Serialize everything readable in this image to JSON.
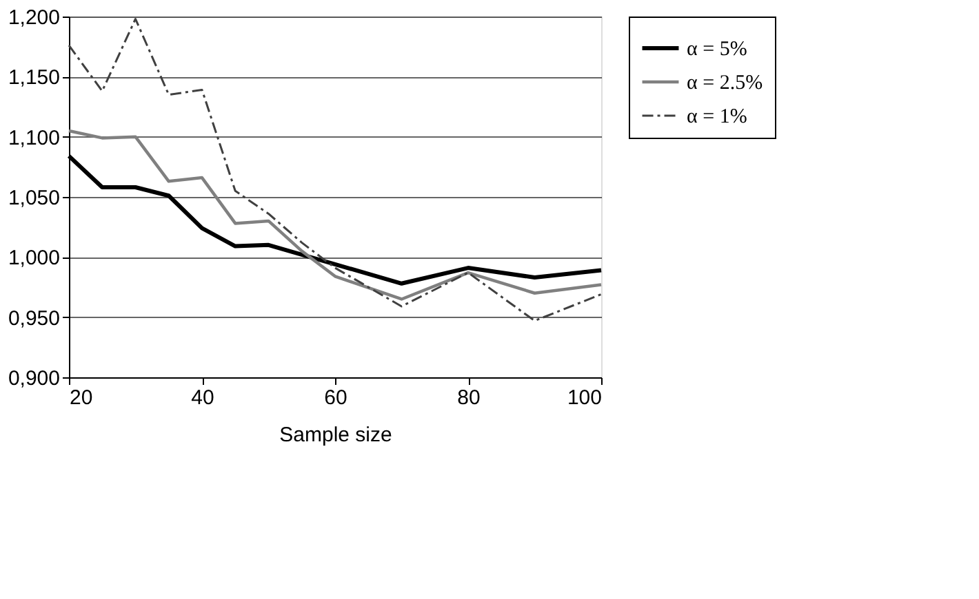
{
  "chart_data": {
    "type": "line",
    "xlabel": "Sample size",
    "x": [
      20,
      25,
      30,
      35,
      40,
      45,
      50,
      55,
      60,
      70,
      80,
      90,
      100
    ],
    "series": [
      {
        "name": "α = 5%",
        "color": "#000000",
        "line_style": "solid",
        "values": [
          1.084,
          1.058,
          1.058,
          1.051,
          1.024,
          1.009,
          1.01,
          1.002,
          0.994,
          0.978,
          0.991,
          0.983,
          0.989
        ]
      },
      {
        "name": "α = 2.5%",
        "color": "#808080",
        "line_style": "solid",
        "values": [
          1.105,
          1.099,
          1.1,
          1.063,
          1.066,
          1.028,
          1.03,
          1.005,
          0.984,
          0.965,
          0.987,
          0.97,
          0.977
        ]
      },
      {
        "name": "α = 1%",
        "color": "#404040",
        "line_style": "dashed",
        "values": [
          1.176,
          1.138,
          1.198,
          1.135,
          1.139,
          1.055,
          1.036,
          1.012,
          0.991,
          0.959,
          0.987,
          0.947,
          0.969
        ]
      }
    ],
    "xlim": [
      20,
      100
    ],
    "xticks": [
      20,
      40,
      60,
      80,
      100
    ],
    "ylim": [
      0.9,
      1.2
    ],
    "yticks": [
      {
        "value": 0.9,
        "label": "0,900"
      },
      {
        "value": 0.95,
        "label": "0,950"
      },
      {
        "value": 1.0,
        "label": "1,000"
      },
      {
        "value": 1.05,
        "label": "1,050"
      },
      {
        "value": 1.1,
        "label": "1,100"
      },
      {
        "value": 1.15,
        "label": "1,150"
      },
      {
        "value": 1.2,
        "label": "1,200"
      }
    ],
    "grid": "y",
    "legend": "right",
    "marker": "none"
  }
}
